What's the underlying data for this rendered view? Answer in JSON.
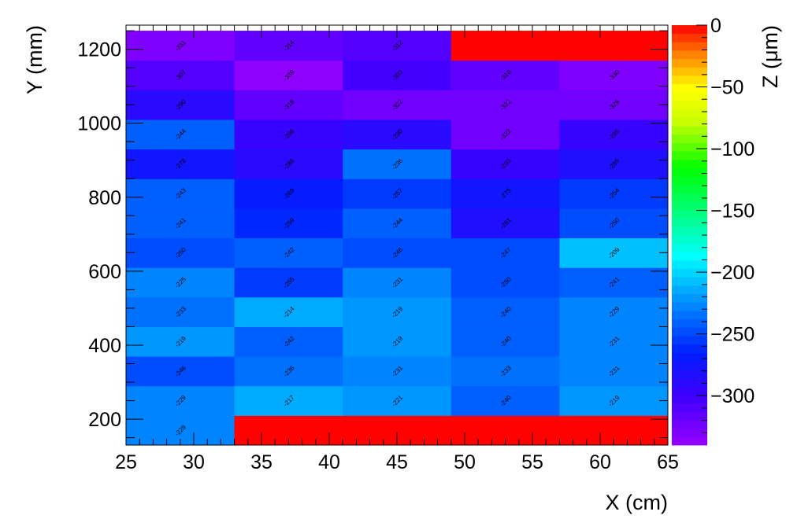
{
  "chart_data": {
    "type": "heatmap",
    "xlabel": "X (cm)",
    "ylabel": "Y (mm)",
    "zlabel": "Z (μm)",
    "xlim": [
      25,
      65
    ],
    "ylim": [
      130,
      1265
    ],
    "zlim": [
      -340,
      0
    ],
    "x_ticks": [
      25,
      30,
      35,
      40,
      45,
      50,
      55,
      60,
      65
    ],
    "y_ticks": [
      200,
      400,
      600,
      800,
      1000,
      1200
    ],
    "z_ticks": [
      0,
      -50,
      -100,
      -150,
      -200,
      -250,
      -300
    ],
    "x_tick_labels": [
      "25",
      "30",
      "35",
      "40",
      "45",
      "50",
      "55",
      "60",
      "65"
    ],
    "y_tick_labels": [
      "200",
      "400",
      "600",
      "800",
      "1000",
      "1200"
    ],
    "z_tick_labels": [
      "0",
      "−50",
      "−100",
      "−150",
      "−200",
      "−250",
      "−300"
    ],
    "x_bin_edges": [
      25,
      33,
      41,
      49,
      57,
      65
    ],
    "y_bin_edges": [
      130,
      210,
      290,
      370,
      450,
      530,
      610,
      690,
      770,
      850,
      930,
      1010,
      1090,
      1170,
      1250
    ],
    "values": [
      [
        -229,
        0,
        0,
        0,
        0
      ],
      [
        -229,
        -217,
        -221,
        -240,
        -219
      ],
      [
        -246,
        -236,
        -231,
        -233,
        -231
      ],
      [
        -219,
        -242,
        -219,
        -240,
        -231
      ],
      [
        -233,
        -214,
        -219,
        -240,
        -229
      ],
      [
        -225,
        -255,
        -231,
        -250,
        -241
      ],
      [
        -250,
        -242,
        -246,
        -247,
        -209
      ],
      [
        -241,
        -259,
        -244,
        -281,
        -250
      ],
      [
        -243,
        -269,
        -257,
        -275,
        -254
      ],
      [
        -278,
        -286,
        -236,
        -293,
        -285
      ],
      [
        -244,
        -298,
        -290,
        -322,
        -295
      ],
      [
        -290,
        -318,
        -322,
        -322,
        -326
      ],
      [
        -307,
        -339,
        -303,
        -318,
        -330
      ],
      [
        -331,
        -314,
        -312,
        0,
        0
      ]
    ],
    "labels": [
      [
        "-229",
        "",
        "",
        "",
        ""
      ],
      [
        "-229",
        "-217",
        "-221",
        "-240",
        "-219"
      ],
      [
        "-246",
        "-236",
        "-231",
        "-233",
        "-231"
      ],
      [
        "-219",
        "-242",
        "-219",
        "-240",
        "-231"
      ],
      [
        "-233",
        "-214",
        "-219",
        "-240",
        "-229"
      ],
      [
        "-225",
        "-255",
        "-231",
        "-250",
        "-241"
      ],
      [
        "-250",
        "-242",
        "-246",
        "-247",
        "-209"
      ],
      [
        "-241",
        "-259",
        "-244",
        "-281",
        "-250"
      ],
      [
        "-243",
        "-269",
        "-257",
        "-275",
        "-254"
      ],
      [
        "-278",
        "-286",
        "-236",
        "-293",
        "-285"
      ],
      [
        "-244",
        "-298",
        "-290",
        "-322",
        "-295"
      ],
      [
        "-290",
        "-318",
        "-322",
        "-322",
        "-326"
      ],
      [
        "-307",
        "-339",
        "-303",
        "-318",
        "-330"
      ],
      [
        "-331",
        "-314",
        "-312",
        "",
        ""
      ]
    ]
  }
}
